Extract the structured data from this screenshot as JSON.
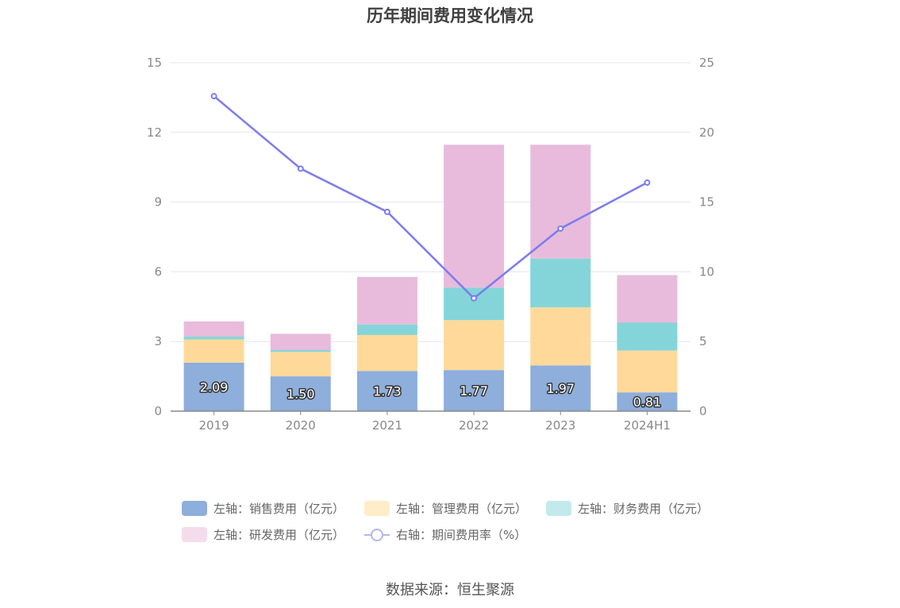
{
  "title": "历年期间费用变化情况",
  "source": "数据来源：恒生聚源",
  "chart_data": {
    "type": "bar",
    "stacked": true,
    "categories": [
      "2019",
      "2020",
      "2021",
      "2022",
      "2023",
      "2024H1"
    ],
    "left_axis": {
      "min": 0,
      "max": 15,
      "ticks": [
        "0",
        "3",
        "6",
        "9",
        "12",
        "15"
      ]
    },
    "right_axis": {
      "min": 0,
      "max": 25,
      "ticks": [
        "0",
        "5",
        "10",
        "15",
        "20",
        "25"
      ]
    },
    "series": [
      {
        "name": "左轴：销售费用（亿元）",
        "axis": "left",
        "color": "#8eaedb",
        "values": [
          2.09,
          1.5,
          1.73,
          1.77,
          1.97,
          0.81
        ],
        "labels": [
          "2.09",
          "1.50",
          "1.73",
          "1.77",
          "1.97",
          "0.81"
        ]
      },
      {
        "name": "左轴：管理费用（亿元）",
        "axis": "left",
        "color": "#fed99a",
        "legend_color": "#ffecc8",
        "values": [
          1.0,
          1.05,
          1.55,
          2.15,
          2.5,
          1.8
        ]
      },
      {
        "name": "左轴：财务费用（亿元）",
        "axis": "left",
        "color": "#84d5d9",
        "legend_color": "#c2eaec",
        "values": [
          0.12,
          0.08,
          0.45,
          1.4,
          2.1,
          1.2
        ]
      },
      {
        "name": "左轴：研发费用（亿元）",
        "axis": "left",
        "color": "#e8bbdc",
        "legend_color": "#f4dcec",
        "values": [
          0.65,
          0.7,
          2.05,
          6.15,
          4.9,
          2.05
        ]
      },
      {
        "name": "右轴：期间费用率（%）",
        "axis": "right",
        "type": "line",
        "color": "#7b7cf0",
        "values": [
          22.6,
          17.4,
          14.3,
          8.1,
          13.1,
          16.4
        ]
      }
    ]
  }
}
